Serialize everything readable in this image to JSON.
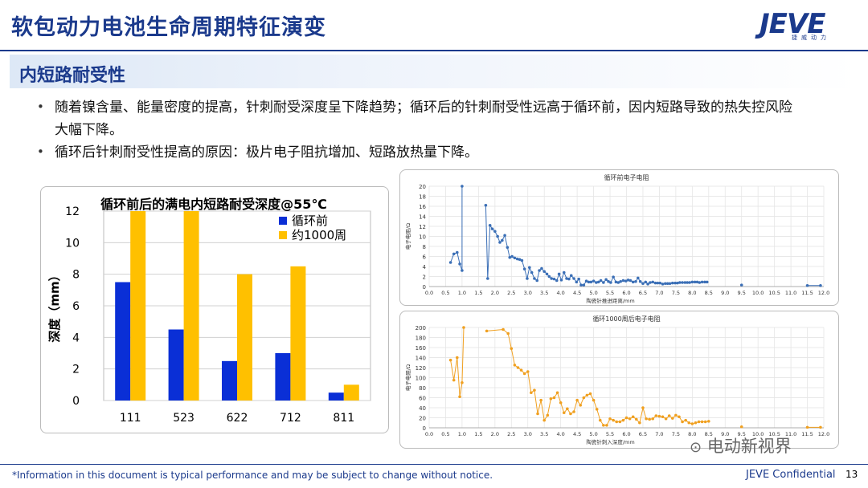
{
  "header": {
    "title": "软包动力电池生命周期特征演变",
    "logo_text": "JEVE",
    "logo_sub": "捷威动力"
  },
  "section": {
    "title": "内短路耐受性"
  },
  "bullets": [
    {
      "line1": "随着镍含量、能量密度的提高，针刺耐受深度呈下降趋势；循环后的针刺耐受性远高于循环前，因内短路导致的热失控风险",
      "line2": "大幅下降。"
    },
    {
      "line1": "循环后针刺耐受性提高的原因：极片电子阻抗增加、短路放热量下降。"
    }
  ],
  "footer": {
    "note": "*Information in this document is typical performance and may be subject to change without notice.",
    "confidential": "JEVE Confidential",
    "page": "13",
    "watermark": "电动新视界"
  },
  "colors": {
    "brand_blue": "#1b3a8c",
    "series_before": "#0a2fd6",
    "series_after": "#ffc000",
    "line_before": "#3b6fb6",
    "line_after": "#f0a020"
  },
  "chart_data": [
    {
      "type": "bar",
      "title": "循环前后的满电内短路耐受深度@55℃",
      "ylabel": "深度（mm）",
      "xlabel": "",
      "ylim": [
        0,
        12
      ],
      "yticks": [
        0,
        2,
        4,
        6,
        8,
        10,
        12
      ],
      "categories": [
        "111",
        "523",
        "622",
        "712",
        "811"
      ],
      "series": [
        {
          "name": "循环前",
          "color": "#0a2fd6",
          "values": [
            7.5,
            4.5,
            2.5,
            3.0,
            0.5
          ]
        },
        {
          "name": "约1000周",
          "color": "#ffc000",
          "values": [
            12,
            12,
            8,
            8.5,
            1.0
          ]
        }
      ],
      "legend": "top-right",
      "grid": true
    },
    {
      "type": "line",
      "title": "循环前电子电阻",
      "xlabel": "陶瓷针推进距离/mm",
      "ylabel": "电子电阻/Ω",
      "xlim": [
        0,
        12
      ],
      "ylim": [
        0,
        20
      ],
      "xticks": [
        "0.0",
        "0.5",
        "1.0",
        "1.5",
        "2.0",
        "2.5",
        "3.0",
        "3.5",
        "4.0",
        "4.5",
        "5.0",
        "5.5",
        "6.0",
        "6.5",
        "7.0",
        "7.5",
        "8.0",
        "8.5",
        "9.0",
        "9.5",
        "10.0",
        "10.5",
        "11.0",
        "11.5",
        "12.0"
      ],
      "yticks": [
        0,
        2,
        4,
        6,
        8,
        10,
        12,
        14,
        16,
        18,
        20
      ],
      "grid": true,
      "x": [
        0.65,
        0.75,
        0.85,
        0.93,
        1.0,
        1.0,
        1.72,
        1.78,
        1.85,
        1.92,
        2.0,
        2.08,
        2.15,
        2.22,
        2.3,
        2.38,
        2.45,
        2.52,
        2.6,
        2.68,
        2.75,
        2.82,
        2.9,
        2.98,
        3.05,
        3.12,
        3.2,
        3.28,
        3.35,
        3.42,
        3.5,
        3.58,
        3.65,
        3.72,
        3.8,
        3.88,
        3.95,
        4.02,
        4.1,
        4.18,
        4.25,
        4.32,
        4.4,
        4.48,
        4.55,
        4.62,
        4.7,
        4.78,
        4.85,
        4.92,
        5.0,
        5.08,
        5.15,
        5.22,
        5.3,
        5.38,
        5.45,
        5.52,
        5.6,
        5.68,
        5.75,
        5.82,
        5.9,
        5.98,
        6.05,
        6.12,
        6.2,
        6.28,
        6.35,
        6.42,
        6.5,
        6.58,
        6.65,
        6.72,
        6.8,
        6.88,
        6.95,
        7.02,
        7.1,
        7.18,
        7.25,
        7.32,
        7.4,
        7.48,
        7.55,
        7.62,
        7.7,
        7.78,
        7.85,
        7.92,
        8.0,
        8.08,
        8.15,
        8.22,
        8.3,
        8.38,
        8.45,
        9.5,
        11.5,
        11.9
      ],
      "y": [
        4.8,
        6.5,
        6.8,
        4.5,
        3.2,
        20,
        16.2,
        1.6,
        12.2,
        11.5,
        11,
        10,
        8.8,
        9.2,
        10.2,
        7.8,
        5.8,
        6,
        5.7,
        5.5,
        5.4,
        5.2,
        3.5,
        1.6,
        3.8,
        2.8,
        1.6,
        1.2,
        3.2,
        3.6,
        3,
        2.5,
        2,
        1.6,
        1.5,
        1.2,
        2.5,
        1.3,
        2.8,
        1.6,
        1.5,
        2.2,
        1.6,
        0.9,
        1.5,
        0.3,
        0.3,
        1.1,
        0.9,
        0.9,
        1.1,
        0.8,
        0.9,
        1.2,
        0.8,
        1.4,
        1,
        0.8,
        1.9,
        0.9,
        0.8,
        1,
        1.2,
        1.1,
        1.3,
        1.2,
        0.9,
        1,
        1.7,
        1,
        0.6,
        0.9,
        0.5,
        0.8,
        0.9,
        0.7,
        0.7,
        0.7,
        0.5,
        0.6,
        0.6,
        0.6,
        0.7,
        0.7,
        0.7,
        0.8,
        0.8,
        0.8,
        0.8,
        0.8,
        0.9,
        0.9,
        0.9,
        0.8,
        0.9,
        0.9,
        0.9,
        0.3,
        0.2,
        0.2
      ]
    },
    {
      "type": "line",
      "title": "循环1000周后电子电阻",
      "xlabel": "陶瓷针刺入深度/mm",
      "ylabel": "电子电阻/Ω",
      "xlim": [
        0,
        12
      ],
      "ylim": [
        0,
        200
      ],
      "xticks": [
        "0.0",
        "0.5",
        "1.0",
        "1.5",
        "2.0",
        "2.5",
        "3.0",
        "3.5",
        "4.0",
        "4.5",
        "5.0",
        "5.5",
        "6.0",
        "6.5",
        "7.0",
        "7.5",
        "8.0",
        "8.5",
        "9.0",
        "9.5",
        "10.0",
        "10.5",
        "11.0",
        "11.5",
        "12.0"
      ],
      "yticks": [
        0,
        20,
        40,
        60,
        80,
        100,
        120,
        140,
        160,
        180,
        200
      ],
      "grid": true,
      "x": [
        0.65,
        0.75,
        0.85,
        0.93,
        1.0,
        1.05,
        1.75,
        2.25,
        2.4,
        2.5,
        2.6,
        2.7,
        2.8,
        2.9,
        3.0,
        3.1,
        3.2,
        3.3,
        3.4,
        3.5,
        3.6,
        3.7,
        3.8,
        3.9,
        4.0,
        4.1,
        4.2,
        4.3,
        4.4,
        4.5,
        4.6,
        4.7,
        4.8,
        4.9,
        5.0,
        5.1,
        5.2,
        5.3,
        5.4,
        5.5,
        5.6,
        5.7,
        5.8,
        5.9,
        6.0,
        6.1,
        6.2,
        6.3,
        6.4,
        6.5,
        6.6,
        6.7,
        6.8,
        6.9,
        7.0,
        7.1,
        7.2,
        7.3,
        7.4,
        7.5,
        7.6,
        7.7,
        7.8,
        7.9,
        8.0,
        8.1,
        8.2,
        8.3,
        8.4,
        8.5,
        9.5,
        11.5,
        11.9
      ],
      "y": [
        135,
        95,
        140,
        62,
        90,
        200,
        193,
        196,
        188,
        158,
        125,
        120,
        115,
        108,
        112,
        70,
        75,
        28,
        55,
        15,
        25,
        58,
        60,
        70,
        50,
        30,
        38,
        28,
        32,
        55,
        45,
        60,
        65,
        68,
        55,
        37,
        15,
        5,
        5,
        18,
        15,
        12,
        12,
        15,
        20,
        18,
        22,
        17,
        10,
        40,
        18,
        17,
        18,
        24,
        23,
        22,
        18,
        24,
        19,
        25,
        22,
        12,
        15,
        10,
        8,
        10,
        12,
        12,
        12,
        13,
        2,
        1,
        1
      ]
    }
  ]
}
